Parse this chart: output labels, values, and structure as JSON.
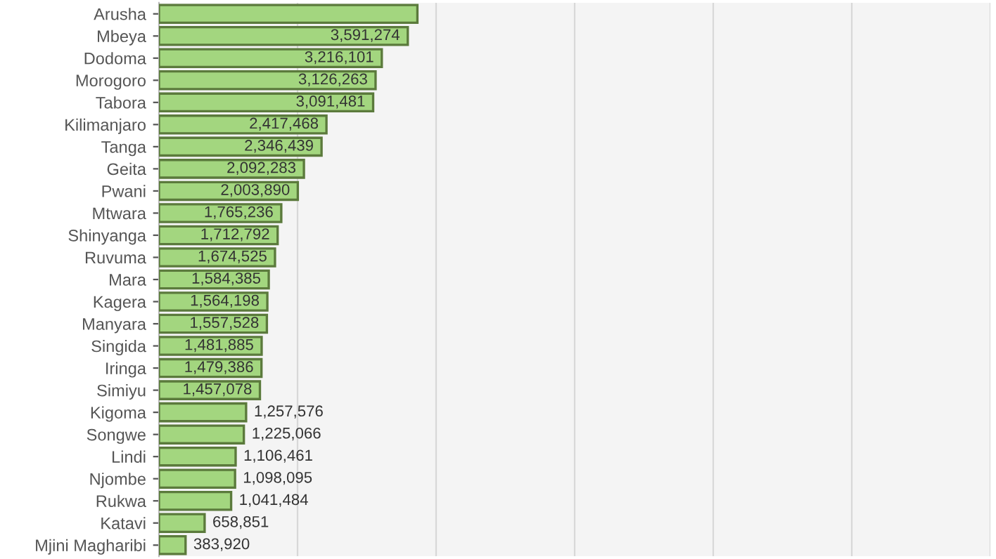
{
  "chart_data": {
    "type": "bar",
    "orientation": "horizontal",
    "categories": [
      "Arusha",
      "Mbeya",
      "Dodoma",
      "Morogoro",
      "Tabora",
      "Kilimanjaro",
      "Tanga",
      "Geita",
      "Pwani",
      "Mtwara",
      "Shinyanga",
      "Ruvuma",
      "Mara",
      "Kagera",
      "Manyara",
      "Singida",
      "Iringa",
      "Simiyu",
      "Kigoma",
      "Songwe",
      "Lindi",
      "Njombe",
      "Rukwa",
      "Katavi",
      "Mjini Magharibi"
    ],
    "values": [
      3730000,
      3591274,
      3216101,
      3126263,
      3091481,
      2417468,
      2346439,
      2092283,
      2003890,
      1765236,
      1712792,
      1674525,
      1584385,
      1564198,
      1557528,
      1481885,
      1479386,
      1457078,
      1257576,
      1225066,
      1106461,
      1098095,
      1041484,
      658851,
      383920
    ],
    "value_labels": [
      null,
      "3,591,274",
      "3,216,101",
      "3,126,263",
      "3,091,481",
      "2,417,468",
      "2,346,439",
      "2,092,283",
      "2,003,890",
      "1,765,236",
      "1,712,792",
      "1,674,525",
      "1,584,385",
      "1,564,198",
      "1,557,528",
      "1,481,885",
      "1,479,386",
      "1,457,078",
      "1,257,576",
      "1,225,066",
      "1,106,461",
      "1,098,095",
      "1,041,484",
      "658,851",
      "383,920"
    ],
    "color": "#a3d67f",
    "xlim": [
      0,
      12000000
    ],
    "xticks": [
      {
        "value": 0,
        "label": null
      },
      {
        "value": 2000000,
        "label": null
      },
      {
        "value": 4000000,
        "label": null
      },
      {
        "value": 6000000,
        "label": null
      },
      {
        "value": 8000000,
        "label": null
      },
      {
        "value": 10000000,
        "label": null
      },
      {
        "value": 12000000,
        "label": null
      }
    ],
    "tick_labels": "y",
    "grid": "x"
  }
}
